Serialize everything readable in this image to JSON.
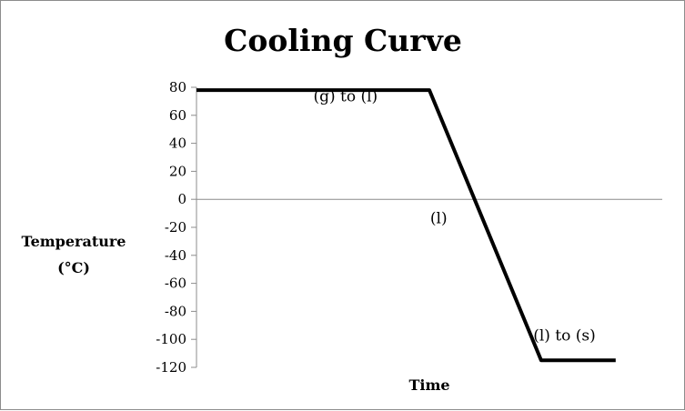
{
  "chart_data": {
    "type": "line",
    "title": "Cooling Curve",
    "xlabel": "Time",
    "ylabel_lines": [
      "Temperature",
      "(°C)"
    ],
    "ylim": [
      -120,
      80
    ],
    "yticks": [
      80,
      60,
      40,
      20,
      0,
      -20,
      -40,
      -60,
      -80,
      -100,
      -120
    ],
    "grid": false,
    "legend": "none",
    "series": [
      {
        "x": [
          0,
          5,
          7.4,
          9
        ],
        "y": [
          78,
          78,
          -115,
          -115
        ]
      }
    ],
    "xlim": [
      0,
      10
    ],
    "annotations": [
      {
        "text": "(g) to (l)",
        "x": 3.2,
        "y": 70
      },
      {
        "text": "(l)",
        "x": 5.2,
        "y": -17
      },
      {
        "text": "(l) to (s)",
        "x": 7.9,
        "y": -101
      }
    ],
    "colors": {
      "line": "#000000",
      "axis": "#8c8c8c"
    }
  }
}
